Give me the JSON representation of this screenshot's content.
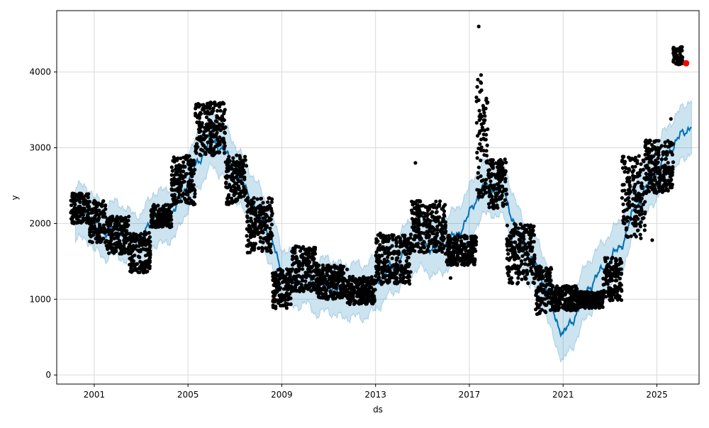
{
  "chart_data": {
    "type": "line",
    "title": "",
    "xlabel": "ds",
    "ylabel": "y",
    "xlim": [
      1999.4,
      2026.8
    ],
    "ylim": [
      -120,
      4810
    ],
    "grid": true,
    "x_ticks": [
      {
        "value": 2001,
        "label": "2001"
      },
      {
        "value": 2005,
        "label": "2005"
      },
      {
        "value": 2009,
        "label": "2009"
      },
      {
        "value": 2013,
        "label": "2013"
      },
      {
        "value": 2017,
        "label": "2017"
      },
      {
        "value": 2021,
        "label": "2021"
      },
      {
        "value": 2025,
        "label": "2025"
      }
    ],
    "y_ticks": [
      {
        "value": 0,
        "label": "0"
      },
      {
        "value": 1000,
        "label": "1000"
      },
      {
        "value": 2000,
        "label": "2000"
      },
      {
        "value": 3000,
        "label": "3000"
      },
      {
        "value": 4000,
        "label": "4000"
      }
    ],
    "colors": {
      "observed": "#000000",
      "forecast": "#0072B2",
      "interval": "#0072B2",
      "highlight": "#ff0000",
      "grid": "#d9d9d9"
    },
    "series": [
      {
        "role": "forecast_mean",
        "points": [
          [
            2000.2,
            2150
          ],
          [
            2000.8,
            2120
          ],
          [
            2001.0,
            1990
          ],
          [
            2001.5,
            1890
          ],
          [
            2002.0,
            1940
          ],
          [
            2002.5,
            1800
          ],
          [
            2003.0,
            1760
          ],
          [
            2003.5,
            2060
          ],
          [
            2004.0,
            2080
          ],
          [
            2004.5,
            2200
          ],
          [
            2005.0,
            2550
          ],
          [
            2005.5,
            2850
          ],
          [
            2006.0,
            3100
          ],
          [
            2006.5,
            2980
          ],
          [
            2007.0,
            2700
          ],
          [
            2007.5,
            2430
          ],
          [
            2008.0,
            2150
          ],
          [
            2008.5,
            1840
          ],
          [
            2009.0,
            1330
          ],
          [
            2009.5,
            1240
          ],
          [
            2010.0,
            1300
          ],
          [
            2010.5,
            1150
          ],
          [
            2011.0,
            1200
          ],
          [
            2011.5,
            1100
          ],
          [
            2012.0,
            1120
          ],
          [
            2012.5,
            1100
          ],
          [
            2013.0,
            1200
          ],
          [
            2013.5,
            1380
          ],
          [
            2014.0,
            1500
          ],
          [
            2014.5,
            1700
          ],
          [
            2015.0,
            1760
          ],
          [
            2015.5,
            1650
          ],
          [
            2016.0,
            1740
          ],
          [
            2016.5,
            1850
          ],
          [
            2017.0,
            2120
          ],
          [
            2017.5,
            2450
          ],
          [
            2018.0,
            2480
          ],
          [
            2018.5,
            2420
          ],
          [
            2019.0,
            1900
          ],
          [
            2019.5,
            1570
          ],
          [
            2020.0,
            1400
          ],
          [
            2020.5,
            900
          ],
          [
            2021.0,
            520
          ],
          [
            2021.5,
            780
          ],
          [
            2022.0,
            1120
          ],
          [
            2022.5,
            1320
          ],
          [
            2023.0,
            1520
          ],
          [
            2023.5,
            1720
          ],
          [
            2024.0,
            2150
          ],
          [
            2024.5,
            2440
          ],
          [
            2025.0,
            2700
          ],
          [
            2025.5,
            2950
          ],
          [
            2026.0,
            3150
          ],
          [
            2026.5,
            3320
          ]
        ]
      },
      {
        "role": "uncertainty_interval",
        "halfwidth": 350
      },
      {
        "role": "observed",
        "segments": [
          {
            "x": [
              2000.0,
              2000.8
            ],
            "y": [
              2000,
              2400
            ]
          },
          {
            "x": [
              2000.8,
              2001.5
            ],
            "y": [
              1750,
              2300
            ]
          },
          {
            "x": [
              2001.5,
              2002.5
            ],
            "y": [
              1600,
              2100
            ]
          },
          {
            "x": [
              2002.5,
              2003.4
            ],
            "y": [
              1350,
              1900
            ]
          },
          {
            "x": [
              2003.4,
              2004.3
            ],
            "y": [
              1950,
              2250
            ]
          },
          {
            "x": [
              2004.3,
              2005.3
            ],
            "y": [
              2250,
              2900
            ]
          },
          {
            "x": [
              2005.3,
              2006.6
            ],
            "y": [
              2900,
              3600
            ]
          },
          {
            "x": [
              2006.6,
              2007.5
            ],
            "y": [
              2250,
              2900
            ]
          },
          {
            "x": [
              2007.5,
              2008.6
            ],
            "y": [
              1600,
              2350
            ]
          },
          {
            "x": [
              2008.6,
              2009.4
            ],
            "y": [
              880,
              1400
            ]
          },
          {
            "x": [
              2009.4,
              2010.5
            ],
            "y": [
              1100,
              1700
            ]
          },
          {
            "x": [
              2010.5,
              2011.8
            ],
            "y": [
              1000,
              1450
            ]
          },
          {
            "x": [
              2011.8,
              2013.0
            ],
            "y": [
              930,
              1300
            ]
          },
          {
            "x": [
              2013.0,
              2014.5
            ],
            "y": [
              1200,
              1850
            ]
          },
          {
            "x": [
              2014.5,
              2016.0
            ],
            "y": [
              1600,
              2300
            ]
          },
          {
            "x": [
              2016.0,
              2017.3
            ],
            "y": [
              1450,
              1850
            ]
          },
          {
            "x": [
              2017.3,
              2017.8
            ],
            "y": [
              2300,
              3900
            ]
          },
          {
            "x": [
              2017.8,
              2018.6
            ],
            "y": [
              2200,
              2850
            ]
          },
          {
            "x": [
              2018.6,
              2019.8
            ],
            "y": [
              1200,
              2000
            ]
          },
          {
            "x": [
              2019.8,
              2020.5
            ],
            "y": [
              800,
              1450
            ]
          },
          {
            "x": [
              2020.5,
              2021.6
            ],
            "y": [
              850,
              1180
            ]
          },
          {
            "x": [
              2021.6,
              2022.7
            ],
            "y": [
              880,
              1100
            ]
          },
          {
            "x": [
              2022.7,
              2023.5
            ],
            "y": [
              980,
              1550
            ]
          },
          {
            "x": [
              2023.5,
              2024.5
            ],
            "y": [
              1800,
              2900
            ]
          },
          {
            "x": [
              2024.5,
              2025.7
            ],
            "y": [
              2400,
              3100
            ]
          },
          {
            "x": [
              2025.7,
              2026.1
            ],
            "y": [
              4100,
              4330
            ]
          }
        ],
        "outliers": [
          [
            2017.4,
            4600
          ],
          [
            2017.5,
            3960
          ],
          [
            2014.7,
            2800
          ],
          [
            2013.2,
            1870
          ],
          [
            2016.2,
            1280
          ],
          [
            2024.8,
            1780
          ],
          [
            2025.6,
            3380
          ]
        ]
      },
      {
        "role": "highlight_point",
        "points": [
          [
            2026.25,
            4115
          ]
        ]
      }
    ]
  }
}
